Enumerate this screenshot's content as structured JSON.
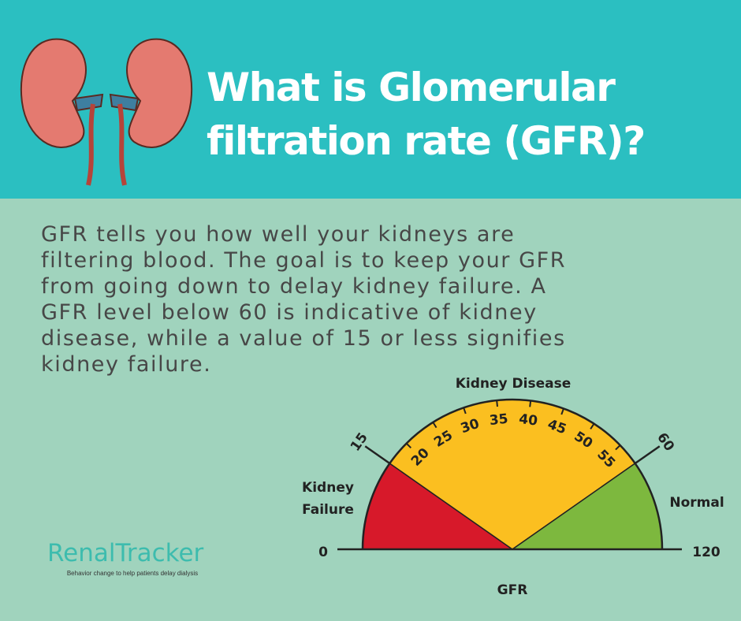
{
  "header": {
    "title_lines": [
      "What is Glomerular",
      "filtration rate (GFR)?"
    ]
  },
  "body": {
    "paragraph_lines": [
      "GFR tells you how well your kidneys are",
      "filtering blood. The goal is to keep your GFR",
      "from going down to delay kidney failure. A",
      "GFR level below 60 is indicative of kidney",
      "disease, while a value of 15 or less signifies",
      "kidney failure."
    ]
  },
  "gauge": {
    "title": "Kidney Disease",
    "left_end": "0",
    "right_end": "120",
    "boundary_low": "15",
    "boundary_high": "60",
    "scale_labels": [
      "20",
      "25",
      "30",
      "35",
      "40",
      "45",
      "50",
      "55"
    ],
    "left_zone_lines": [
      "Kidney",
      "Failure"
    ],
    "right_zone": "Normal",
    "axis_label": "GFR"
  },
  "brand": {
    "name": "RenalTracker",
    "tagline": "Behavior change to help patients delay dialysis"
  }
}
